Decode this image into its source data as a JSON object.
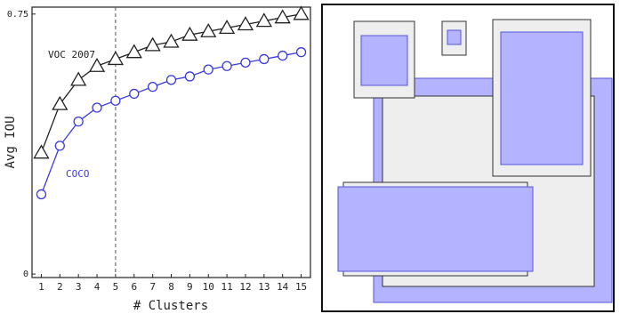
{
  "chart_data": {
    "type": "line",
    "x_label": "# Clusters",
    "y_label": "Avg IOU",
    "x": [
      1,
      2,
      3,
      4,
      5,
      6,
      7,
      8,
      9,
      10,
      11,
      12,
      13,
      14,
      15
    ],
    "series": [
      {
        "name": "VOC 2007",
        "color": "#222222",
        "marker": "triangle",
        "values": [
          0.35,
          0.49,
          0.56,
          0.6,
          0.62,
          0.64,
          0.66,
          0.67,
          0.69,
          0.7,
          0.71,
          0.72,
          0.73,
          0.74,
          0.75
        ]
      },
      {
        "name": "COCO",
        "color": "#3a3adf",
        "marker": "circle",
        "values": [
          0.23,
          0.37,
          0.44,
          0.48,
          0.5,
          0.52,
          0.54,
          0.56,
          0.57,
          0.59,
          0.6,
          0.61,
          0.62,
          0.63,
          0.64
        ]
      }
    ],
    "xlim": [
      0.5,
      15.5
    ],
    "xticks": [
      1,
      2,
      3,
      4,
      5,
      6,
      7,
      8,
      9,
      10,
      11,
      12,
      13,
      14,
      15
    ],
    "ylim": [
      -0.01,
      0.77
    ],
    "yticks": [
      0,
      0.75
    ],
    "vline": 5
  }
}
